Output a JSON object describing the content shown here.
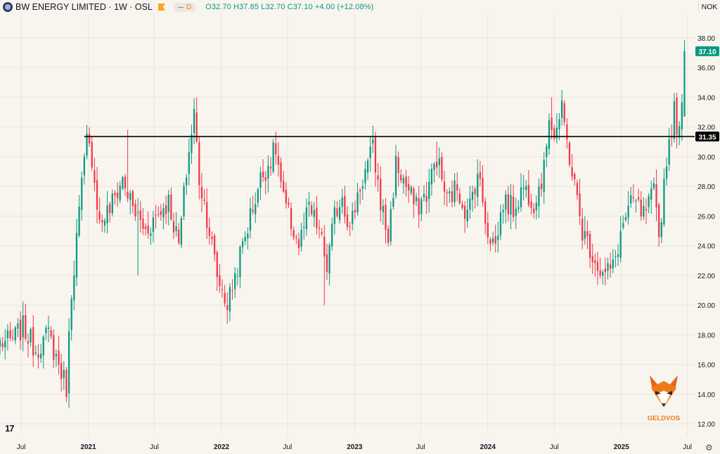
{
  "header": {
    "symbol_title": "BW ENERGY LIMITED · 1W · OSL",
    "interval_badge": "D",
    "ohlc": {
      "o_label": "O",
      "o": "32.70",
      "h_label": "H",
      "h": "37.85",
      "l_label": "L",
      "l": "32.70",
      "c_label": "C",
      "c": "37.10",
      "change": "+4.00 (+12.08%)"
    },
    "currency": "NOK"
  },
  "watermark": {
    "brand": "GELDVOS"
  },
  "colors": {
    "up": "#089981",
    "down": "#f23645",
    "background": "#f8f4ee",
    "grid": "#ebe6de",
    "hline": "#000000"
  },
  "chart_data": {
    "type": "candlestick",
    "title": "BW ENERGY LIMITED · 1W · OSL",
    "y_axis": {
      "ticks": [
        12,
        14,
        16,
        18,
        20,
        22,
        24,
        26,
        28,
        30,
        32,
        34,
        36,
        38
      ],
      "range": [
        11.2,
        39.6
      ],
      "position": "right"
    },
    "x_axis": {
      "ticks": [
        "Jul",
        "2021",
        "Jul",
        "2022",
        "Jul",
        "2023",
        "Jul",
        "2024",
        "Jul",
        "2025",
        "Jul"
      ],
      "range": [
        "2020-05-04",
        "2025-07-21"
      ]
    },
    "grid": true,
    "price_label": {
      "value": "37.10",
      "color": "#089981"
    },
    "horizontal_line": {
      "value": 31.35,
      "label": "31.35",
      "start": "2020-12-21"
    },
    "anchors": [
      [
        "2020-06-01",
        17.5
      ],
      [
        "2020-07-06",
        18.5
      ],
      [
        "2020-08-10",
        17.0
      ],
      [
        "2020-09-14",
        18.0
      ],
      [
        "2020-10-19",
        15.5
      ],
      [
        "2020-11-02",
        14.5
      ],
      [
        "2020-11-16",
        21.0
      ],
      [
        "2020-11-30",
        24.5
      ],
      [
        "2020-12-14",
        28.0
      ],
      [
        "2020-12-28",
        31.0
      ],
      [
        "2021-01-11",
        30.0
      ],
      [
        "2021-02-01",
        25.5
      ],
      [
        "2021-03-01",
        26.5
      ],
      [
        "2021-04-05",
        28.5
      ],
      [
        "2021-05-03",
        26.5
      ],
      [
        "2021-06-07",
        25.0
      ],
      [
        "2021-07-05",
        26.0
      ],
      [
        "2021-08-09",
        27.0
      ],
      [
        "2021-09-06",
        24.0
      ],
      [
        "2021-09-27",
        29.0
      ],
      [
        "2021-10-18",
        33.0
      ],
      [
        "2021-11-01",
        28.5
      ],
      [
        "2021-11-22",
        26.0
      ],
      [
        "2021-12-20",
        22.0
      ],
      [
        "2022-01-17",
        20.0
      ],
      [
        "2022-02-07",
        22.0
      ],
      [
        "2022-02-28",
        24.0
      ],
      [
        "2022-03-21",
        26.0
      ],
      [
        "2022-04-18",
        28.5
      ],
      [
        "2022-05-09",
        29.5
      ],
      [
        "2022-05-30",
        30.5
      ],
      [
        "2022-06-20",
        27.0
      ],
      [
        "2022-07-11",
        25.5
      ],
      [
        "2022-08-01",
        24.0
      ],
      [
        "2022-08-29",
        26.5
      ],
      [
        "2022-09-26",
        25.0
      ],
      [
        "2022-10-17",
        22.5
      ],
      [
        "2022-11-07",
        26.0
      ],
      [
        "2022-11-28",
        27.5
      ],
      [
        "2022-12-19",
        25.0
      ],
      [
        "2023-01-09",
        27.5
      ],
      [
        "2023-01-30",
        29.0
      ],
      [
        "2023-02-20",
        30.5
      ],
      [
        "2023-03-13",
        27.0
      ],
      [
        "2023-04-03",
        24.5
      ],
      [
        "2023-04-24",
        29.5
      ],
      [
        "2023-05-22",
        28.0
      ],
      [
        "2023-06-19",
        26.5
      ],
      [
        "2023-07-17",
        27.5
      ],
      [
        "2023-08-14",
        30.0
      ],
      [
        "2023-09-11",
        27.0
      ],
      [
        "2023-10-09",
        28.0
      ],
      [
        "2023-11-06",
        26.0
      ],
      [
        "2023-12-04",
        29.0
      ],
      [
        "2024-01-01",
        25.0
      ],
      [
        "2024-01-22",
        24.0
      ],
      [
        "2024-02-12",
        27.0
      ],
      [
        "2024-03-11",
        26.5
      ],
      [
        "2024-04-08",
        28.0
      ],
      [
        "2024-05-06",
        27.0
      ],
      [
        "2024-06-03",
        29.0
      ],
      [
        "2024-06-17",
        33.0
      ],
      [
        "2024-07-01",
        31.5
      ],
      [
        "2024-07-22",
        33.0
      ],
      [
        "2024-08-12",
        30.0
      ],
      [
        "2024-08-26",
        28.0
      ],
      [
        "2024-09-16",
        25.0
      ],
      [
        "2024-10-14",
        23.5
      ],
      [
        "2024-11-11",
        22.0
      ],
      [
        "2024-12-09",
        22.5
      ],
      [
        "2025-01-06",
        25.5
      ],
      [
        "2025-02-03",
        27.0
      ],
      [
        "2025-03-03",
        26.0
      ],
      [
        "2025-03-31",
        27.5
      ],
      [
        "2025-04-14",
        24.5
      ],
      [
        "2025-05-05",
        30.0
      ],
      [
        "2025-05-26",
        33.0
      ],
      [
        "2025-06-09",
        31.5
      ],
      [
        "2025-06-16",
        33.1
      ],
      [
        "2025-06-23",
        37.1
      ]
    ],
    "spikes": [
      [
        "2020-11-09",
        13.4
      ],
      [
        "2021-04-19",
        31.8
      ],
      [
        "2021-05-17",
        22.0
      ],
      [
        "2021-10-25",
        34.0
      ],
      [
        "2022-01-24",
        18.9
      ],
      [
        "2022-10-10",
        20.0
      ],
      [
        "2023-02-20",
        31.2
      ],
      [
        "2023-08-14",
        31.0
      ],
      [
        "2024-06-24",
        34.0
      ],
      [
        "2024-07-22",
        33.8
      ],
      [
        "2024-11-18",
        21.5
      ],
      [
        "2025-04-14",
        24.5
      ],
      [
        "2025-05-26",
        32.0
      ],
      [
        "2025-06-23",
        37.85
      ]
    ]
  }
}
